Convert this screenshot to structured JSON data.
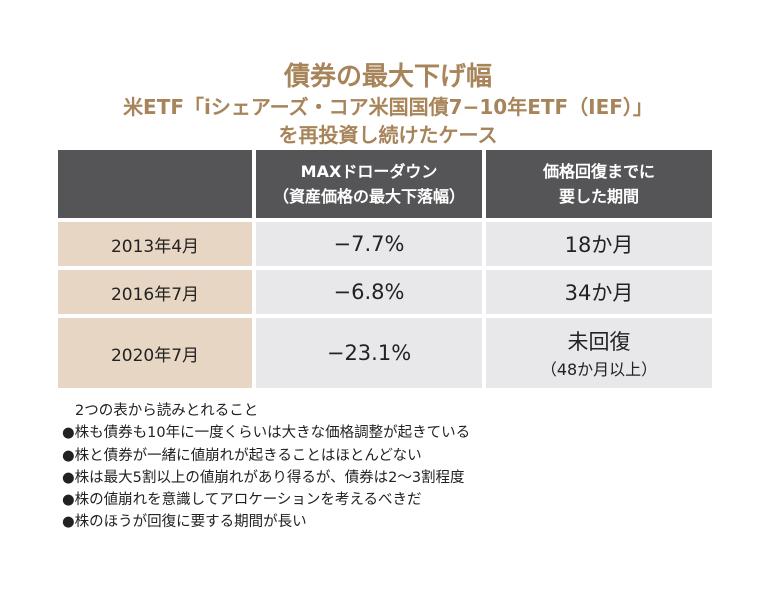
{
  "title": "債券の最大下げ幅",
  "subtitle_line1": "米ETF「iシェアーズ・コア米国国債7−10年ETF（IEF）」",
  "subtitle_line2": "を再投資し続けたケース",
  "colors": {
    "title": "#a8845a",
    "header_bg": "#555457",
    "label_bg": "#e6d6c3",
    "cell_bg": "#e8e8ea"
  },
  "table": {
    "headers": [
      {
        "line1": "",
        "line2": ""
      },
      {
        "line1": "MAXドローダウン",
        "line2": "（資産価格の最大下落幅）"
      },
      {
        "line1": "価格回復までに",
        "line2": "要した期間"
      }
    ],
    "rows": [
      {
        "date": "2013年4月",
        "drawdown": "−7.7%",
        "recovery": "18か月",
        "note": ""
      },
      {
        "date": "2016年7月",
        "drawdown": "−6.8%",
        "recovery": "34か月",
        "note": ""
      },
      {
        "date": "2020年7月",
        "drawdown": "−23.1%",
        "recovery": "未回復",
        "note": "（48か月以上）"
      }
    ]
  },
  "notes": {
    "heading": "2つの表から読みとれること",
    "bullet": "●",
    "items": [
      "株も債券も10年に一度くらいは大きな価格調整が起きている",
      "株と債券が一緒に値崩れが起きることはほとんどない",
      "株は最大5割以上の値崩れがあり得るが、債券は2〜3割程度",
      "株の値崩れを意識してアロケーションを考えるべきだ",
      "株のほうが回復に要する期間が長い"
    ]
  }
}
